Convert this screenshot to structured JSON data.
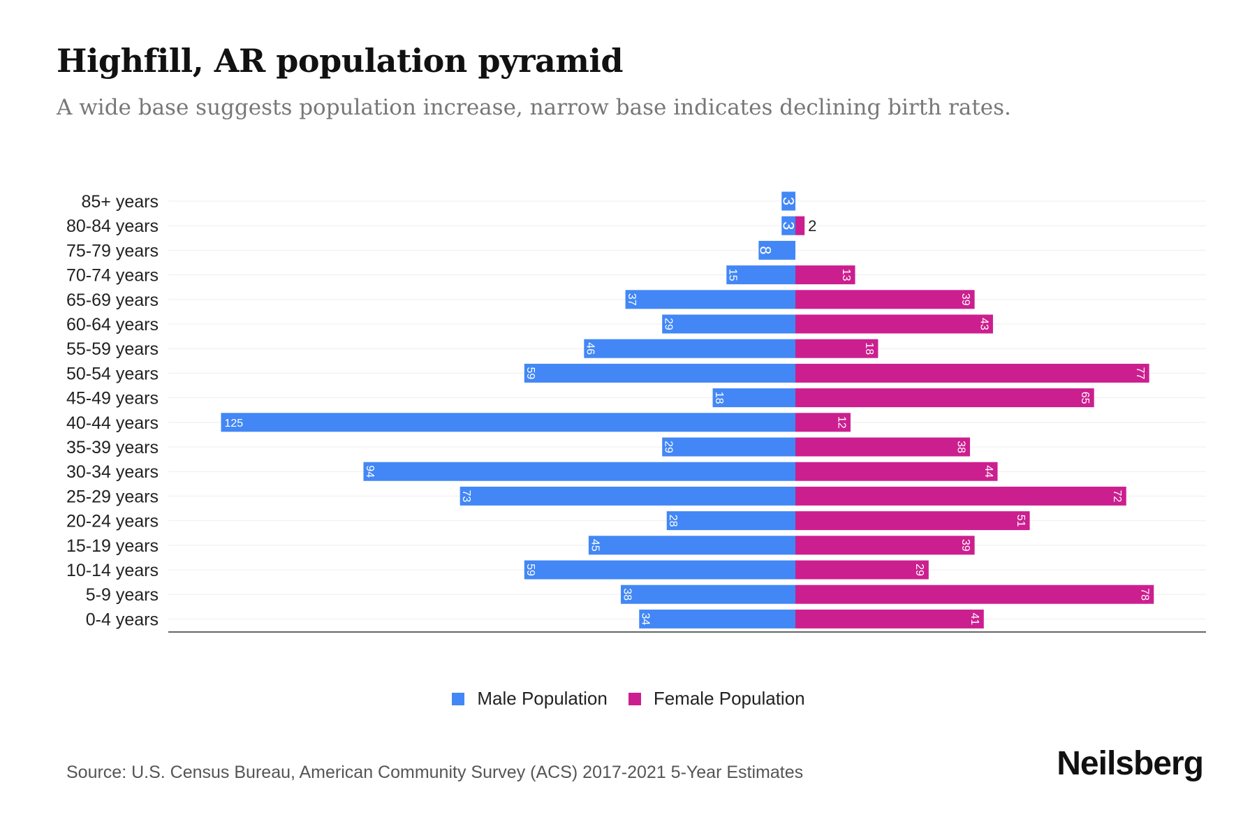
{
  "chart_data": {
    "type": "bar",
    "orientation": "horizontal-pyramid",
    "title": "Highfill, AR population pyramid",
    "subtitle": "A wide base suggests population increase, narrow base indicates declining birth rates.",
    "categories": [
      "85+ years",
      "80-84 years",
      "75-79 years",
      "70-74 years",
      "65-69 years",
      "60-64 years",
      "55-59 years",
      "50-54 years",
      "45-49 years",
      "40-44 years",
      "35-39 years",
      "30-34 years",
      "25-29 years",
      "20-24 years",
      "15-19 years",
      "10-14 years",
      "5-9 years",
      "0-4 years"
    ],
    "series": [
      {
        "name": "Male Population",
        "color": "#4287f5",
        "values": [
          3,
          3,
          8,
          15,
          37,
          29,
          46,
          59,
          18,
          125,
          29,
          94,
          73,
          28,
          45,
          59,
          38,
          34
        ]
      },
      {
        "name": "Female Population",
        "color": "#cc1f8f",
        "values": [
          0,
          2,
          0,
          13,
          39,
          43,
          18,
          77,
          65,
          12,
          38,
          44,
          72,
          51,
          39,
          29,
          78,
          41
        ]
      }
    ],
    "xlim": [
      -137,
      89
    ],
    "grid": true,
    "legend_position": "bottom-center"
  },
  "source": "Source: U.S. Census Bureau, American Community Survey (ACS) 2017-2021 5-Year Estimates",
  "brand": "Neilsberg"
}
